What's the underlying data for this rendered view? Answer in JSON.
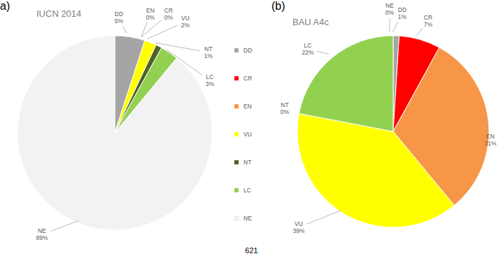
{
  "chart_data": [
    {
      "type": "pie",
      "panel_label": "a)",
      "title": "IUCN 2014",
      "categories": [
        "DD",
        "EN",
        "CR",
        "VU",
        "NT",
        "LC",
        "NE"
      ],
      "values": [
        5,
        0,
        0,
        2,
        1,
        3,
        89
      ],
      "value_labels": [
        "5%",
        "0%",
        "0%",
        "2%",
        "1%",
        "3%",
        "89%"
      ],
      "colors": [
        "#a5a5a5",
        "#f79646",
        "#ff0000",
        "#ffff00",
        "#4f6228",
        "#92d050",
        "#f2f2f2"
      ],
      "legend": "right",
      "data_labels": true
    },
    {
      "type": "pie",
      "panel_label": "(b)",
      "title": "BAU A4c",
      "categories": [
        "NE",
        "DD",
        "CR",
        "EN",
        "VU",
        "NT",
        "LC"
      ],
      "values": [
        0,
        1,
        7,
        31,
        39,
        0,
        22
      ],
      "value_labels": [
        "0%",
        "1%",
        "7%",
        "31%",
        "39%",
        "0%",
        "22%"
      ],
      "colors": [
        "#f2f2f2",
        "#a5a5a5",
        "#ff0000",
        "#f79646",
        "#ffff00",
        "#4f6228",
        "#92d050"
      ],
      "data_labels": true
    }
  ],
  "footer": "621"
}
